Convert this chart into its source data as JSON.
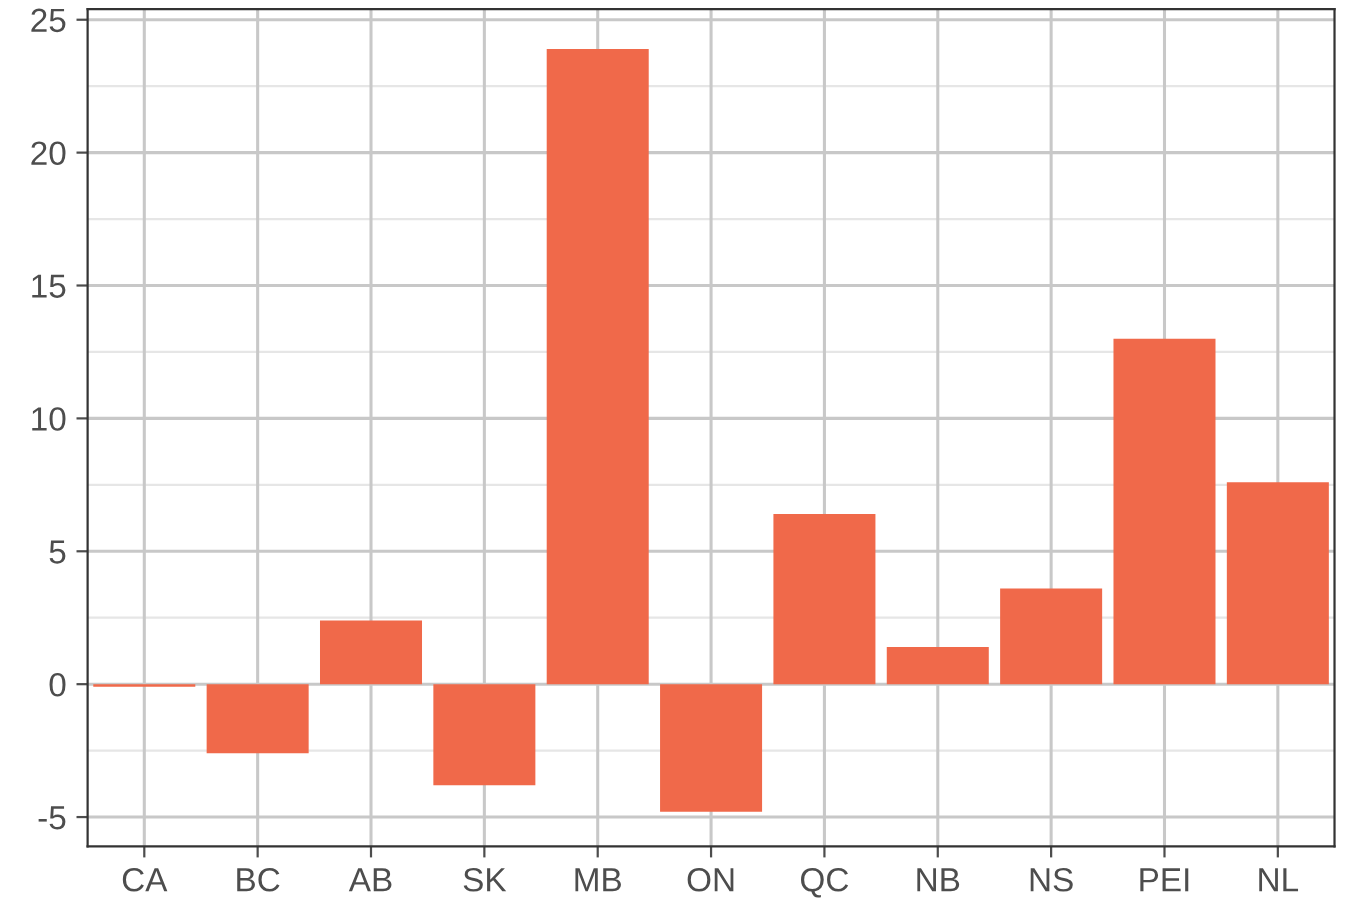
{
  "chart_data": {
    "type": "bar",
    "categories": [
      "CA",
      "BC",
      "AB",
      "SK",
      "MB",
      "ON",
      "QC",
      "NB",
      "NS",
      "PEI",
      "NL"
    ],
    "values": [
      -0.1,
      -2.6,
      2.4,
      -3.8,
      23.9,
      -4.8,
      6.4,
      1.4,
      3.6,
      13.0,
      7.6
    ],
    "color": "#f0694a",
    "ylim": [
      -6.1,
      25.4
    ],
    "yticks": [
      -5,
      0,
      5,
      10,
      15,
      20,
      25
    ],
    "grid": true
  }
}
